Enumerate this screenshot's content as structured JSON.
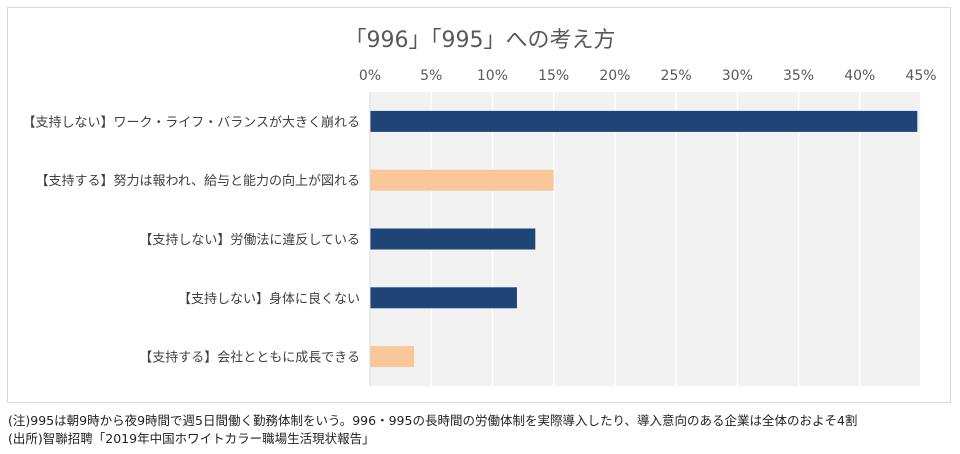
{
  "chart_data": {
    "type": "bar",
    "orientation": "horizontal",
    "title": "「996」「995」への考え方",
    "categories": [
      "【支持しない】ワーク・ライフ・バランスが大きく崩れる",
      "【支持する】努力は報われ、給与と能力の向上が図れる",
      "【支持しない】労働法に違反している",
      "【支持しない】身体に良くない",
      "【支持する】会社とともに成長できる"
    ],
    "values": [
      44.7,
      15.0,
      13.5,
      12.0,
      3.6
    ],
    "value_unit": "%",
    "bar_colors": [
      "#1f4477",
      "#f8c79a",
      "#1f4477",
      "#1f4477",
      "#f8c79a"
    ],
    "xlim": [
      0,
      45
    ],
    "xticks": [
      "0%",
      "5%",
      "10%",
      "15%",
      "20%",
      "25%",
      "30%",
      "35%",
      "40%",
      "45%"
    ],
    "x_axis_position": "top",
    "grid": true,
    "legend": "none",
    "colors": {
      "support_not": "#1f4477",
      "support": "#f8c79a",
      "plot_background": "#f2f2f2",
      "gridline": "#ffffff"
    }
  },
  "notes": {
    "line1": "(注)995は朝9時から夜9時間で週5日間働く勤務体制をいう。996・995の長時間の労働体制を実際導入したり、導入意向のある企業は全体のおよそ4割",
    "line2": "(出所)智聯招聘「2019年中国ホワイトカラー職場生活現状報告」"
  }
}
